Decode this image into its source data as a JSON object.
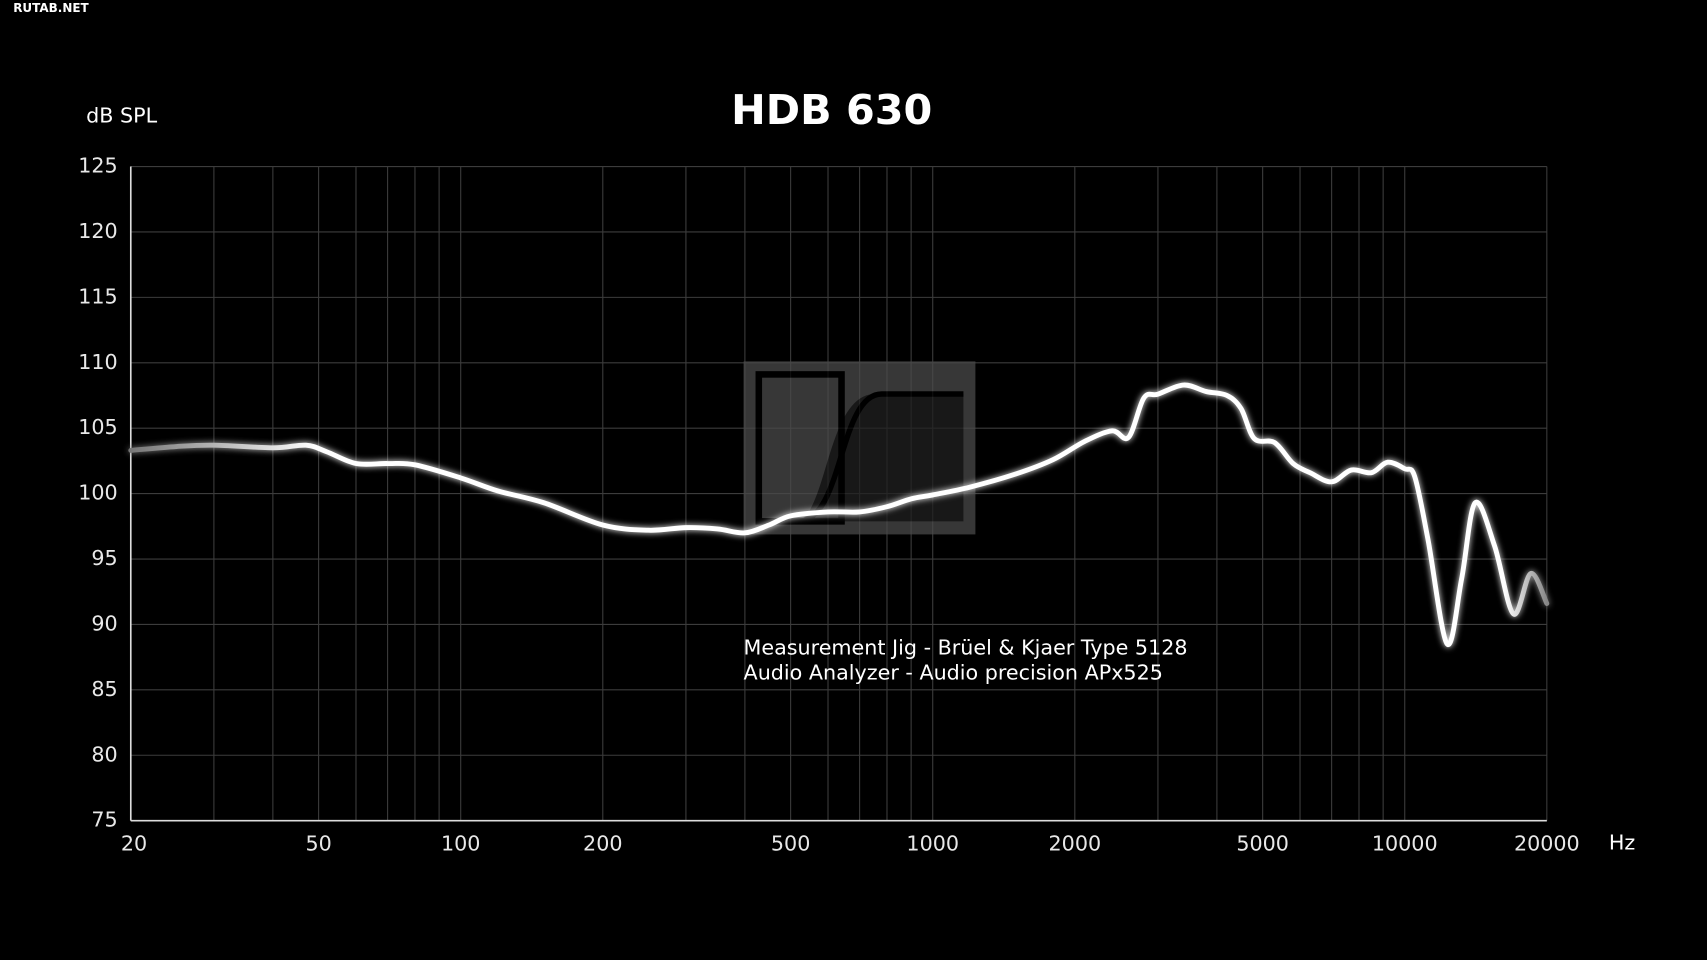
{
  "watermark": "RUTAB.NET",
  "chart_data": {
    "type": "line",
    "title": "HDB 630",
    "y_label": "dB SPL",
    "x_label": "Hz",
    "annotations": [
      "Measurement Jig -  Brüel & Kjaer Type 5128",
      "Audio Analyzer - Audio precision APx525"
    ],
    "x_scale": "log",
    "grid": true,
    "color": "#ffffff",
    "xlim": [
      20,
      20000
    ],
    "ylim": [
      75,
      125
    ],
    "xticks": [
      20,
      50,
      100,
      200,
      500,
      1000,
      2000,
      5000,
      10000,
      20000
    ],
    "minor_xticks": [
      30,
      40,
      60,
      70,
      80,
      90,
      300,
      400,
      600,
      700,
      800,
      900,
      3000,
      4000,
      6000,
      7000,
      8000,
      9000
    ],
    "yticks": [
      75,
      80,
      85,
      90,
      95,
      100,
      105,
      110,
      115,
      120,
      125
    ],
    "x": [
      20,
      25,
      30,
      40,
      47,
      52,
      60,
      70,
      80,
      100,
      120,
      150,
      200,
      250,
      300,
      350,
      400,
      450,
      500,
      600,
      700,
      800,
      900,
      1000,
      1200,
      1500,
      1800,
      2100,
      2400,
      2600,
      2800,
      3000,
      3400,
      3800,
      4200,
      4500,
      4800,
      5300,
      5800,
      6300,
      7000,
      7700,
      8500,
      9200,
      10000,
      10500,
      11200,
      12300,
      13200,
      14100,
      15500,
      17000,
      18500,
      20000
    ],
    "values": [
      103.3,
      103.6,
      103.7,
      103.5,
      103.7,
      103.2,
      102.3,
      102.3,
      102.2,
      101.2,
      100.2,
      99.3,
      97.6,
      97.2,
      97.4,
      97.3,
      97.0,
      97.6,
      98.3,
      98.6,
      98.6,
      99.0,
      99.6,
      99.9,
      100.5,
      101.5,
      102.6,
      104.0,
      104.8,
      104.3,
      107.3,
      107.6,
      108.3,
      107.8,
      107.5,
      106.5,
      104.2,
      103.9,
      102.3,
      101.6,
      100.9,
      101.8,
      101.6,
      102.4,
      101.9,
      101.3,
      96.5,
      88.5,
      93.5,
      99.3,
      96.0,
      90.8,
      93.9,
      91.6
    ]
  }
}
